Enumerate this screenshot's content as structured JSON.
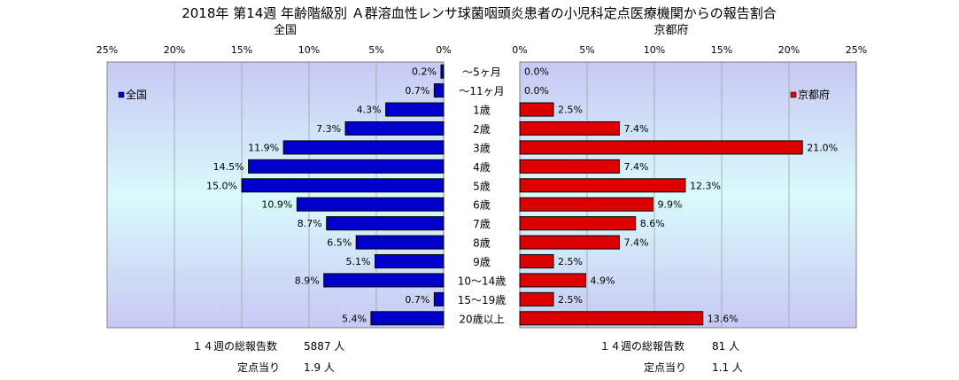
{
  "chart_data": {
    "type": "bar",
    "title": "2018年 第14週 年齢階級別 Ａ群溶血性レンサ球菌咽頭炎患者の小児科定点医療機関からの報告割合",
    "categories": [
      "～5ヶ月",
      "～11ヶ月",
      "1歳",
      "2歳",
      "3歳",
      "4歳",
      "5歳",
      "6歳",
      "7歳",
      "8歳",
      "9歳",
      "10～14歳",
      "15～19歳",
      "20歳以上"
    ],
    "xlim": [
      0,
      25
    ],
    "xticks": [
      "0%",
      "5%",
      "10%",
      "15%",
      "20%",
      "25%"
    ],
    "series": [
      {
        "name": "全国",
        "panel_title": "全国",
        "legend": "全国",
        "color": "#0000cc",
        "values": [
          0.2,
          0.7,
          4.3,
          7.3,
          11.9,
          14.5,
          15.0,
          10.9,
          8.7,
          6.5,
          5.1,
          8.9,
          0.7,
          5.4
        ],
        "labels": [
          "0.2%",
          "0.7%",
          "4.3%",
          "7.3%",
          "11.9%",
          "14.5%",
          "15.0%",
          "10.9%",
          "8.7%",
          "6.5%",
          "5.1%",
          "8.9%",
          "0.7%",
          "5.4%"
        ]
      },
      {
        "name": "京都府",
        "panel_title": "京都府",
        "legend": "京都府",
        "color": "#dd0000",
        "values": [
          0.0,
          0.0,
          2.5,
          7.4,
          21.0,
          7.4,
          12.3,
          9.9,
          8.6,
          7.4,
          2.5,
          4.9,
          2.5,
          13.6
        ],
        "labels": [
          "0.0%",
          "0.0%",
          "2.5%",
          "7.4%",
          "21.0%",
          "7.4%",
          "12.3%",
          "9.9%",
          "8.6%",
          "7.4%",
          "2.5%",
          "4.9%",
          "2.5%",
          "13.6%"
        ]
      }
    ]
  },
  "footer": {
    "left": {
      "total_label": "１４週の総報告数",
      "total_value": "5887 人",
      "per_label": "定点当り",
      "per_value": "1.9 人"
    },
    "right": {
      "total_label": "１４週の総報告数",
      "total_value": "81 人",
      "per_label": "定点当り",
      "per_value": "1.1 人"
    }
  }
}
